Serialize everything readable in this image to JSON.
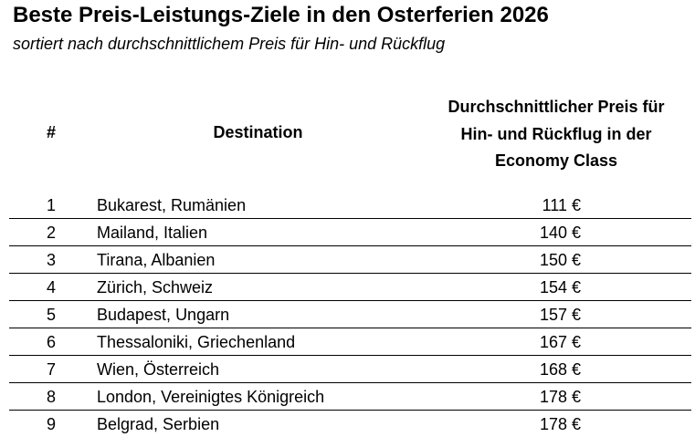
{
  "title": "Beste Preis-Leistungs-Ziele in den Osterferien 2026",
  "subtitle": "sortiert nach durchschnittlichem Preis für Hin- und Rückflug",
  "table": {
    "headers": {
      "rank": "#",
      "destination": "Destination",
      "price_line1": "Durchschnittlicher Preis für",
      "price_line2": "Hin- und Rückflug in der",
      "price_line3": "Economy Class"
    },
    "rows": [
      {
        "rank": "1",
        "destination": "Bukarest, Rumänien",
        "price": "111 €"
      },
      {
        "rank": "2",
        "destination": "Mailand, Italien",
        "price": "140 €"
      },
      {
        "rank": "3",
        "destination": "Tirana, Albanien",
        "price": "150 €"
      },
      {
        "rank": "4",
        "destination": "Zürich, Schweiz",
        "price": "154 €"
      },
      {
        "rank": "5",
        "destination": "Budapest, Ungarn",
        "price": "157 €"
      },
      {
        "rank": "6",
        "destination": "Thessaloniki, Griechenland",
        "price": "167 €"
      },
      {
        "rank": "7",
        "destination": "Wien, Österreich",
        "price": "168 €"
      },
      {
        "rank": "8",
        "destination": "London, Vereinigtes Königreich",
        "price": "178 €"
      },
      {
        "rank": "9",
        "destination": "Belgrad, Serbien",
        "price": "178 €"
      }
    ]
  }
}
